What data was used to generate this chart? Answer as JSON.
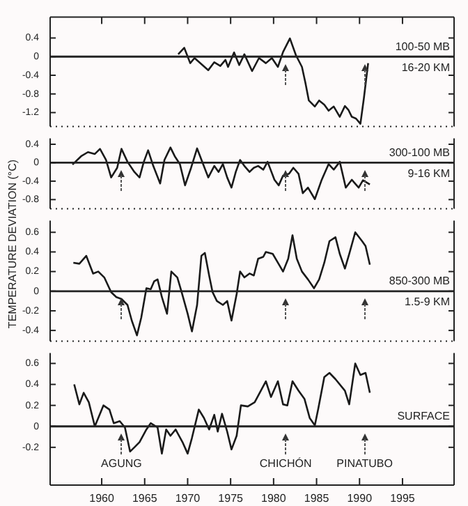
{
  "chart_data": [
    {
      "type": "line",
      "xlim": [
        1954,
        2001
      ],
      "xticks": [
        1960,
        1965,
        1970,
        1975,
        1980,
        1985,
        1990,
        1995
      ],
      "tick_labels": "y",
      "ylim": [
        -1.5,
        0.85
      ],
      "yticks": [
        -1.2,
        -0.8,
        -0.4,
        0,
        0.4
      ],
      "grid": false,
      "legend": false,
      "marker": "none",
      "line_style": "solid",
      "ref_lines": [
        {
          "axis": "y",
          "value": 0
        },
        {
          "axis": "x",
          "value": 1981.4
        },
        {
          "axis": "x",
          "value": 1990.6
        }
      ],
      "annotations": [
        "100-50 MB",
        "16-20 KM"
      ],
      "series": [
        {
          "color": "#1a1a1a",
          "x": [
            1968.9,
            1969.6,
            1970.3,
            1970.8,
            1972.4,
            1973.1,
            1973.8,
            1974.4,
            1974.7,
            1975.4,
            1976,
            1976.6,
            1977.5,
            1978.3,
            1979.1,
            1979.8,
            1980.5,
            1981.1,
            1981.9,
            1982.6,
            1983.3,
            1983.7,
            1984.1,
            1984.8,
            1985.3,
            1985.9,
            1986.4,
            1987,
            1987.7,
            1988.3,
            1988.7,
            1989.1,
            1989.6,
            1990.1,
            1990.5,
            1991
          ],
          "values": [
            0.05,
            0.19,
            -0.14,
            -0.03,
            -0.29,
            -0.12,
            -0.2,
            -0.07,
            -0.22,
            0.09,
            -0.18,
            0.05,
            -0.31,
            -0.03,
            -0.14,
            -0.03,
            -0.22,
            0.1,
            0.39,
            0.03,
            -0.22,
            -0.56,
            -0.94,
            -1.07,
            -0.94,
            -1.03,
            -1.16,
            -1.07,
            -1.29,
            -1.06,
            -1.14,
            -1.29,
            -1.33,
            -1.44,
            -0.9,
            -0.14
          ]
        }
      ]
    },
    {
      "type": "line",
      "xlim": [
        1954,
        2001
      ],
      "tick_labels": "y",
      "ylim": [
        -1.0,
        0.53
      ],
      "yticks": [
        -0.8,
        -0.4,
        0,
        0.4
      ],
      "grid": false,
      "legend": false,
      "marker": "none",
      "line_style": "solid",
      "ylabel": "TEMPERATURE DEVIATION (°C)",
      "ref_lines": [
        {
          "axis": "y",
          "value": 0
        },
        {
          "axis": "x",
          "value": 1962.3
        },
        {
          "axis": "x",
          "value": 1981.4
        },
        {
          "axis": "x",
          "value": 1990.6
        }
      ],
      "annotations": [
        "300-100 MB",
        "9-16 KM"
      ],
      "series": [
        {
          "color": "#1a1a1a",
          "x": [
            1956.6,
            1957.6,
            1958.4,
            1959.2,
            1959.8,
            1960.5,
            1961.1,
            1961.8,
            1962.3,
            1963,
            1963.8,
            1964.4,
            1964.9,
            1965.4,
            1966,
            1966.8,
            1967.3,
            1968,
            1968.5,
            1969.1,
            1969.7,
            1970.4,
            1971.1,
            1971.8,
            1972.4,
            1973.1,
            1973.6,
            1974.1,
            1974.6,
            1975.1,
            1975.6,
            1976.1,
            1976.6,
            1977.2,
            1977.7,
            1978.2,
            1978.8,
            1979.3,
            1980.1,
            1980.6,
            1981.1,
            1981.8,
            1982.3,
            1982.9,
            1983.4,
            1984,
            1984.8,
            1985.6,
            1986.4,
            1987,
            1987.7,
            1988.4,
            1989.1,
            1989.9,
            1990.4,
            1991.2
          ],
          "values": [
            -0.04,
            0.14,
            0.23,
            0.19,
            0.3,
            0.06,
            -0.32,
            -0.11,
            0.3,
            0.02,
            -0.2,
            -0.32,
            0.02,
            0.27,
            -0.07,
            -0.45,
            0.06,
            0.33,
            0.14,
            -0.03,
            -0.49,
            -0.11,
            0.31,
            -0.03,
            -0.32,
            -0.07,
            -0.2,
            -0.03,
            -0.32,
            -0.54,
            -0.2,
            0.06,
            -0.07,
            -0.2,
            -0.11,
            -0.07,
            -0.15,
            0.02,
            -0.37,
            -0.49,
            -0.28,
            -0.24,
            -0.11,
            -0.24,
            -0.66,
            -0.54,
            -0.79,
            -0.37,
            -0.03,
            -0.15,
            0.02,
            -0.54,
            -0.37,
            -0.54,
            -0.38,
            -0.47
          ]
        }
      ]
    },
    {
      "type": "line",
      "xlim": [
        1954,
        2001
      ],
      "tick_labels": "y",
      "ylim": [
        -0.51,
        0.72
      ],
      "yticks": [
        -0.4,
        -0.2,
        0,
        0.2,
        0.4,
        0.6
      ],
      "grid": false,
      "legend": false,
      "marker": "none",
      "line_style": "solid",
      "ref_lines": [
        {
          "axis": "y",
          "value": 0
        },
        {
          "axis": "x",
          "value": 1962.3
        },
        {
          "axis": "x",
          "value": 1981.4
        },
        {
          "axis": "x",
          "value": 1990.6
        }
      ],
      "annotations": [
        "850-300 MB",
        "1.5-9 KM"
      ],
      "series": [
        {
          "color": "#1a1a1a",
          "x": [
            1956.7,
            1957.4,
            1958.2,
            1959,
            1959.6,
            1960.3,
            1961.1,
            1961.7,
            1962.3,
            1963,
            1963.5,
            1964.1,
            1964.6,
            1965.2,
            1965.7,
            1966.1,
            1966.5,
            1967,
            1967.6,
            1968.1,
            1968.8,
            1969.3,
            1970,
            1970.5,
            1971.1,
            1971.6,
            1972,
            1972.5,
            1972.9,
            1973.4,
            1974.1,
            1974.6,
            1975.1,
            1975.7,
            1976.1,
            1976.6,
            1977.2,
            1977.7,
            1978.2,
            1978.8,
            1979.1,
            1979.9,
            1980.5,
            1981.1,
            1981.7,
            1982.2,
            1982.7,
            1983.3,
            1984,
            1984.7,
            1985.3,
            1985.9,
            1986.5,
            1987.2,
            1987.7,
            1988.3,
            1988.8,
            1989.5,
            1990.3,
            1990.7,
            1991.2
          ],
          "values": [
            0.29,
            0.28,
            0.36,
            0.18,
            0.2,
            0.14,
            -0.01,
            -0.06,
            -0.08,
            -0.14,
            -0.3,
            -0.45,
            -0.27,
            0.03,
            0.02,
            0.1,
            0.12,
            -0.06,
            -0.23,
            0.2,
            0.14,
            -0.01,
            -0.23,
            -0.41,
            -0.14,
            0.36,
            0.39,
            0.16,
            -0.01,
            -0.1,
            -0.14,
            -0.1,
            -0.3,
            -0.03,
            0.2,
            0.14,
            0.18,
            0.16,
            0.33,
            0.35,
            0.4,
            0.38,
            0.29,
            0.2,
            0.33,
            0.57,
            0.33,
            0.2,
            0.12,
            0.03,
            0.12,
            0.29,
            0.51,
            0.55,
            0.38,
            0.23,
            0.38,
            0.6,
            0.51,
            0.46,
            0.27
          ]
        }
      ]
    },
    {
      "type": "line",
      "xlim": [
        1954,
        2001
      ],
      "xticks": [
        1960,
        1965,
        1970,
        1975,
        1980,
        1985,
        1990,
        1995
      ],
      "ylim": [
        -0.56,
        0.7
      ],
      "yticks": [
        -0.2,
        0,
        0.2,
        0.4,
        0.6
      ],
      "grid": false,
      "legend": false,
      "marker": "none",
      "line_style": "solid",
      "ref_lines": [
        {
          "axis": "y",
          "value": 0
        },
        {
          "axis": "x",
          "value": 1962.3,
          "label": "AGUNG"
        },
        {
          "axis": "x",
          "value": 1981.4,
          "label": "CHICHÓN"
        },
        {
          "axis": "x",
          "value": 1990.6,
          "label": "PINATUBO"
        }
      ],
      "annotations": [
        "SURFACE"
      ],
      "series": [
        {
          "color": "#1a1a1a",
          "x": [
            1956.8,
            1957.4,
            1957.9,
            1958.5,
            1959.2,
            1960.2,
            1960.9,
            1961.4,
            1962.1,
            1962.7,
            1963.3,
            1963.8,
            1964.4,
            1965.2,
            1965.7,
            1966.5,
            1967,
            1967.5,
            1968,
            1968.6,
            1969.4,
            1970,
            1970.5,
            1971.3,
            1971.9,
            1972.5,
            1973.1,
            1973.5,
            1974,
            1974.6,
            1975.1,
            1975.7,
            1976.2,
            1977,
            1977.8,
            1979.1,
            1979.7,
            1980.5,
            1981.1,
            1981.6,
            1982.2,
            1982.9,
            1983.6,
            1984.2,
            1984.8,
            1985.2,
            1985.9,
            1986.5,
            1987.2,
            1988.3,
            1988.8,
            1989.5,
            1990.1,
            1990.7,
            1991.2
          ],
          "values": [
            0.4,
            0.21,
            0.32,
            0.23,
            0,
            0.2,
            0.16,
            0.03,
            0.05,
            -0.01,
            -0.24,
            -0.2,
            -0.15,
            -0.03,
            0.03,
            -0.01,
            -0.26,
            -0.03,
            -0.09,
            -0.03,
            -0.15,
            -0.26,
            -0.11,
            0.16,
            0.08,
            -0.03,
            0.11,
            -0.05,
            0.12,
            -0.05,
            -0.22,
            -0.09,
            0.2,
            0.19,
            0.23,
            0.43,
            0.28,
            0.43,
            0.21,
            0.2,
            0.43,
            0.34,
            0.26,
            0.08,
            0.01,
            0.17,
            0.47,
            0.51,
            0.45,
            0.34,
            0.21,
            0.6,
            0.49,
            0.51,
            0.32
          ]
        }
      ]
    }
  ]
}
